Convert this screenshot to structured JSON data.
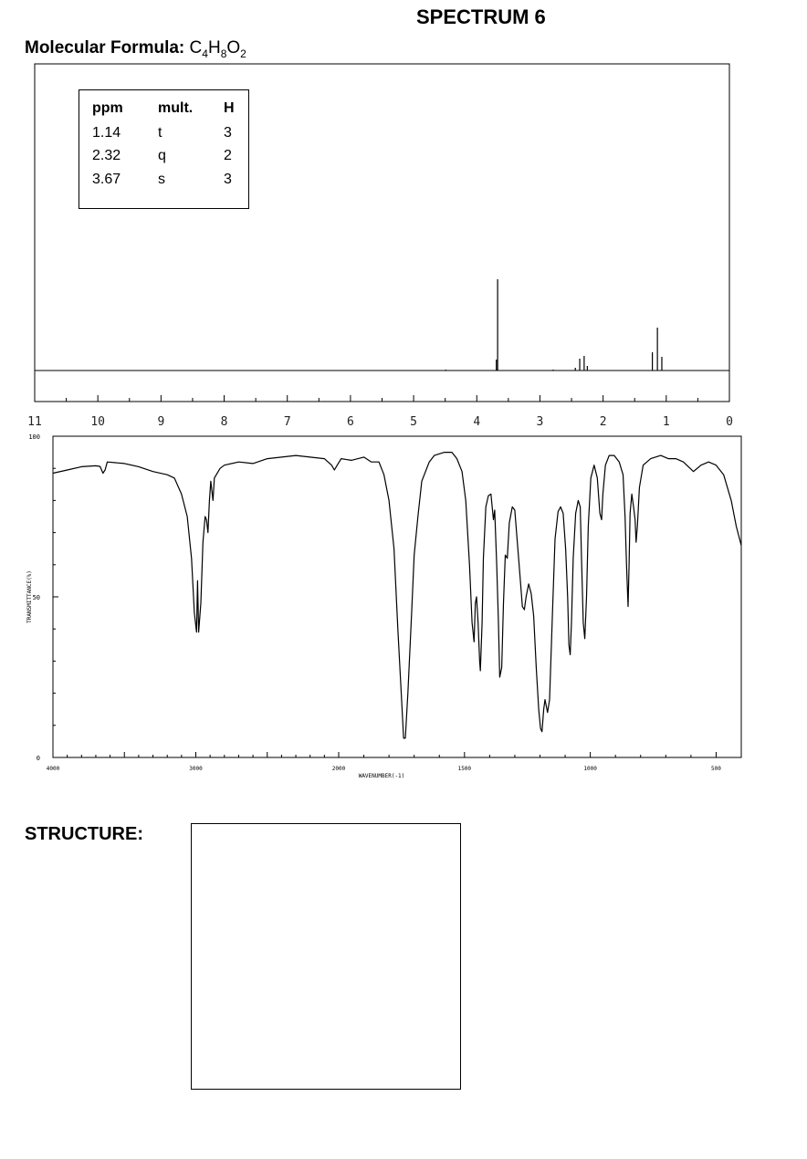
{
  "title": "SPECTRUM 6",
  "formula": {
    "label": "Molecular Formula:",
    "elements": [
      {
        "sym": "C",
        "sub": "4"
      },
      {
        "sym": "H",
        "sub": "8"
      },
      {
        "sym": "O",
        "sub": "2"
      }
    ]
  },
  "structure_label": "STRUCTURE:",
  "chart_data": [
    {
      "type": "line",
      "subtype": "1H NMR spectrum",
      "x_axis": {
        "range": [
          11,
          0
        ],
        "reversed": true,
        "ticks": [
          11,
          10,
          9,
          8,
          7,
          6,
          5,
          4,
          3,
          2,
          1,
          0
        ]
      },
      "table": {
        "headers": [
          "ppm",
          "mult.",
          "H"
        ],
        "rows": [
          [
            "1.14",
            "t",
            "3"
          ],
          [
            "2.32",
            "q",
            "2"
          ],
          [
            "3.67",
            "s",
            "3"
          ]
        ]
      },
      "peaks": [
        {
          "ppm": 3.67,
          "mult": "s",
          "integration": 3,
          "lines": [
            [
              3.67,
              1.0
            ]
          ]
        },
        {
          "ppm": 2.32,
          "mult": "q",
          "integration": 2,
          "lines": [
            [
              2.44,
              0.03
            ],
            [
              2.37,
              0.13
            ],
            [
              2.3,
              0.16
            ],
            [
              2.25,
              0.05
            ]
          ]
        },
        {
          "ppm": 1.14,
          "mult": "t",
          "integration": 3,
          "lines": [
            [
              1.22,
              0.2
            ],
            [
              1.14,
              0.47
            ],
            [
              1.07,
              0.15
            ]
          ]
        }
      ],
      "minor_peaks": [
        [
          4.49,
          0.01
        ],
        [
          2.79,
          0.01
        ],
        [
          0.85,
          0.005
        ]
      ]
    },
    {
      "type": "line",
      "subtype": "IR spectrum",
      "xlabel": "WAVENUMBER(-1)",
      "ylabel": "TRANSMITTANCE(%)",
      "x_axis": {
        "range": [
          4000,
          400
        ],
        "reversed": true,
        "ticks": [
          4000,
          3000,
          2000,
          1500,
          1000,
          500
        ]
      },
      "y_axis": {
        "range": [
          0,
          100
        ],
        "ticks": [
          0,
          50,
          100
        ]
      },
      "series": [
        {
          "points": [
            [
              4000,
              88.5
            ],
            [
              3900,
              89.5
            ],
            [
              3800,
              90.5
            ],
            [
              3700,
              90.8
            ],
            [
              3670,
              90.6
            ],
            [
              3650,
              88.5
            ],
            [
              3635,
              89.5
            ],
            [
              3620,
              92
            ],
            [
              3500,
              91.5
            ],
            [
              3400,
              90.5
            ],
            [
              3300,
              89
            ],
            [
              3200,
              88
            ],
            [
              3150,
              87
            ],
            [
              3100,
              82
            ],
            [
              3060,
              75
            ],
            [
              3030,
              62
            ],
            [
              3010,
              45
            ],
            [
              2995,
              39
            ],
            [
              2988,
              55
            ],
            [
              2980,
              39
            ],
            [
              2965,
              48
            ],
            [
              2950,
              67
            ],
            [
              2935,
              75
            ],
            [
              2925,
              74
            ],
            [
              2915,
              70
            ],
            [
              2905,
              80
            ],
            [
              2895,
              86
            ],
            [
              2880,
              80
            ],
            [
              2870,
              87
            ],
            [
              2830,
              90
            ],
            [
              2800,
              91
            ],
            [
              2700,
              92
            ],
            [
              2600,
              91.5
            ],
            [
              2500,
              93
            ],
            [
              2400,
              93.5
            ],
            [
              2300,
              94
            ],
            [
              2200,
              93.5
            ],
            [
              2100,
              93
            ],
            [
              2050,
              91
            ],
            [
              2030,
              89.5
            ],
            [
              2010,
              91
            ],
            [
              1990,
              93
            ],
            [
              1950,
              92.5
            ],
            [
              1900,
              93.5
            ],
            [
              1870,
              92
            ],
            [
              1840,
              92
            ],
            [
              1820,
              88
            ],
            [
              1800,
              80
            ],
            [
              1780,
              65
            ],
            [
              1765,
              40
            ],
            [
              1750,
              18
            ],
            [
              1742,
              6
            ],
            [
              1735,
              6
            ],
            [
              1725,
              20
            ],
            [
              1710,
              45
            ],
            [
              1700,
              63
            ],
            [
              1685,
              75
            ],
            [
              1670,
              86
            ],
            [
              1640,
              92
            ],
            [
              1620,
              94
            ],
            [
              1580,
              95
            ],
            [
              1550,
              95
            ],
            [
              1530,
              93
            ],
            [
              1510,
              89
            ],
            [
              1495,
              80
            ],
            [
              1480,
              60
            ],
            [
              1470,
              42
            ],
            [
              1462,
              36
            ],
            [
              1457,
              48
            ],
            [
              1452,
              50
            ],
            [
              1446,
              42
            ],
            [
              1440,
              30
            ],
            [
              1437,
              27
            ],
            [
              1430,
              42
            ],
            [
              1425,
              62
            ],
            [
              1415,
              78
            ],
            [
              1405,
              81.5
            ],
            [
              1395,
              82
            ],
            [
              1385,
              74
            ],
            [
              1380,
              77
            ],
            [
              1372,
              60
            ],
            [
              1365,
              42
            ],
            [
              1360,
              25
            ],
            [
              1352,
              28
            ],
            [
              1345,
              48
            ],
            [
              1338,
              63
            ],
            [
              1330,
              62
            ],
            [
              1322,
              73
            ],
            [
              1310,
              78
            ],
            [
              1300,
              77
            ],
            [
              1290,
              67
            ],
            [
              1280,
              57
            ],
            [
              1270,
              47
            ],
            [
              1262,
              46
            ],
            [
              1255,
              50
            ],
            [
              1245,
              54
            ],
            [
              1235,
              51
            ],
            [
              1225,
              44
            ],
            [
              1215,
              28
            ],
            [
              1205,
              15
            ],
            [
              1198,
              9
            ],
            [
              1192,
              8
            ],
            [
              1185,
              15
            ],
            [
              1180,
              18
            ],
            [
              1170,
              14
            ],
            [
              1162,
              18
            ],
            [
              1150,
              46
            ],
            [
              1140,
              68
            ],
            [
              1128,
              76.5
            ],
            [
              1118,
              78
            ],
            [
              1108,
              76
            ],
            [
              1098,
              65
            ],
            [
              1090,
              50
            ],
            [
              1085,
              35
            ],
            [
              1080,
              32
            ],
            [
              1075,
              42
            ],
            [
              1068,
              62
            ],
            [
              1058,
              76
            ],
            [
              1048,
              80
            ],
            [
              1040,
              78
            ],
            [
              1035,
              62
            ],
            [
              1028,
              42
            ],
            [
              1022,
              37
            ],
            [
              1015,
              50
            ],
            [
              1008,
              72
            ],
            [
              998,
              87
            ],
            [
              985,
              91
            ],
            [
              972,
              87
            ],
            [
              962,
              76
            ],
            [
              955,
              74
            ],
            [
              950,
              82
            ],
            [
              940,
              91
            ],
            [
              925,
              94
            ],
            [
              905,
              94
            ],
            [
              885,
              92
            ],
            [
              870,
              88
            ],
            [
              862,
              75
            ],
            [
              856,
              60
            ],
            [
              850,
              47
            ],
            [
              846,
              60
            ],
            [
              842,
              76
            ],
            [
              835,
              82
            ],
            [
              828,
              78
            ],
            [
              822,
              74
            ],
            [
              818,
              67
            ],
            [
              813,
              72
            ],
            [
              805,
              84
            ],
            [
              790,
              91
            ],
            [
              760,
              93
            ],
            [
              720,
              94
            ],
            [
              690,
              93
            ],
            [
              660,
              93
            ],
            [
              630,
              92
            ],
            [
              590,
              89
            ],
            [
              560,
              91
            ],
            [
              530,
              92
            ],
            [
              500,
              91
            ],
            [
              470,
              88
            ],
            [
              440,
              80
            ],
            [
              420,
              72
            ],
            [
              400,
              66
            ]
          ]
        }
      ]
    }
  ]
}
